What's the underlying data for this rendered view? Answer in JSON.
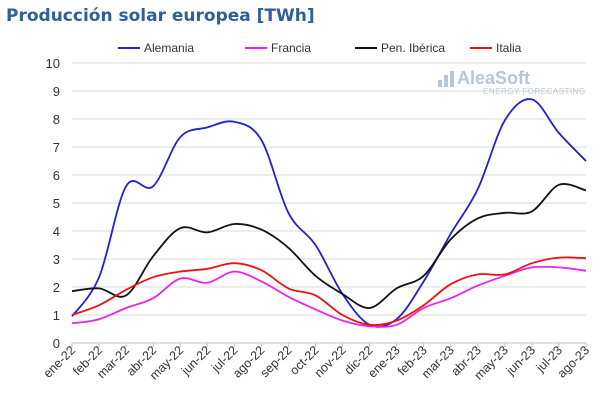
{
  "title": "Producción solar europea [TWh]",
  "logo": {
    "name": "AleaSoft",
    "tagline": "ENERGY FORECASTING",
    "color": "#b6c7dc"
  },
  "chart_data": {
    "type": "line",
    "title": "Producción solar europea [TWh]",
    "xlabel": "",
    "ylabel": "",
    "ylim": [
      0,
      10
    ],
    "yticks": [
      0,
      1,
      2,
      3,
      4,
      5,
      6,
      7,
      8,
      9,
      10
    ],
    "grid": true,
    "legend_position": "top",
    "x": [
      "ene-22",
      "feb-22",
      "mar-22",
      "abr-22",
      "may-22",
      "jun-22",
      "jul-22",
      "ago-22",
      "sep-22",
      "oct-22",
      "nov-22",
      "dic-22",
      "ene-23",
      "feb-23",
      "mar-23",
      "abr-23",
      "may-23",
      "jun-23",
      "jul-23",
      "ago-23"
    ],
    "series": [
      {
        "name": "Alemania",
        "color": "#2222cc",
        "values": [
          0.95,
          2.35,
          5.6,
          5.6,
          7.35,
          7.7,
          7.9,
          7.25,
          4.65,
          3.5,
          1.75,
          0.65,
          0.85,
          2.2,
          3.9,
          5.5,
          7.95,
          8.7,
          7.5,
          6.5
        ]
      },
      {
        "name": "Francia",
        "color": "#ee22ee",
        "values": [
          0.7,
          0.85,
          1.25,
          1.6,
          2.3,
          2.15,
          2.55,
          2.2,
          1.65,
          1.2,
          0.8,
          0.6,
          0.65,
          1.25,
          1.6,
          2.05,
          2.4,
          2.7,
          2.7,
          2.58
        ]
      },
      {
        "name": "Pen. Ibérica",
        "color": "#111111",
        "values": [
          1.85,
          1.95,
          1.7,
          3.1,
          4.1,
          3.95,
          4.25,
          4.05,
          3.4,
          2.4,
          1.75,
          1.25,
          1.95,
          2.4,
          3.7,
          4.45,
          4.65,
          4.7,
          5.65,
          5.45
        ]
      },
      {
        "name": "Italia",
        "color": "#ee1111",
        "values": [
          1.0,
          1.35,
          1.9,
          2.35,
          2.55,
          2.65,
          2.85,
          2.6,
          1.95,
          1.7,
          1.0,
          0.65,
          0.8,
          1.35,
          2.1,
          2.45,
          2.45,
          2.85,
          3.05,
          3.03
        ]
      }
    ]
  }
}
